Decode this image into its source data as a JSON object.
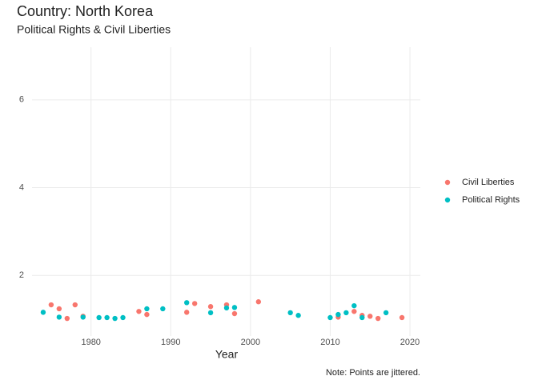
{
  "chart_data": {
    "type": "scatter",
    "title": "Country: North Korea",
    "subtitle": "Political Rights & Civil Liberties",
    "x_label": "Year",
    "caption": "Note: Points are jittered.",
    "xlim": [
      1972.6,
      2021.3
    ],
    "ylim": [
      0.62,
      7.2
    ],
    "xticks": [
      1980,
      1990,
      2000,
      2010,
      2020
    ],
    "yticks": [
      2,
      4,
      6
    ],
    "grid": true,
    "legend": "right",
    "series": [
      {
        "name": "Civil Liberties",
        "color": "#f8766d",
        "x": [
          1975,
          1976,
          1977,
          1978,
          1979,
          1986,
          1987,
          1992,
          1993,
          1995,
          1997,
          1998,
          2001,
          2011,
          2013,
          2014,
          2015,
          2016,
          2019
        ],
        "values": [
          1.33,
          1.24,
          1.02,
          1.33,
          1.07,
          1.18,
          1.11,
          1.16,
          1.36,
          1.29,
          1.33,
          1.13,
          1.4,
          1.05,
          1.18,
          1.09,
          1.07,
          1.02,
          1.04
        ]
      },
      {
        "name": "Political Rights",
        "color": "#00bfc4",
        "x": [
          1974,
          1976,
          1979,
          1981,
          1982,
          1983,
          1984,
          1987,
          1989,
          1992,
          1995,
          1997,
          1998,
          2005,
          2006,
          2010,
          2011,
          2012,
          2013,
          2014,
          2017
        ],
        "values": [
          1.16,
          1.05,
          1.05,
          1.04,
          1.04,
          1.02,
          1.04,
          1.24,
          1.24,
          1.38,
          1.15,
          1.26,
          1.27,
          1.15,
          1.09,
          1.04,
          1.11,
          1.15,
          1.31,
          1.04,
          1.15
        ]
      }
    ]
  }
}
